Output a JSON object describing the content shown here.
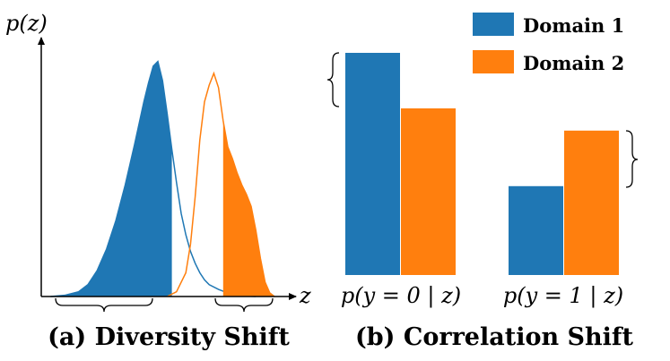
{
  "colors": {
    "domain1": "#1f77b4",
    "domain2": "#ff7f0e",
    "axis": "#000000"
  },
  "chart_data": [
    {
      "panel": "a",
      "type": "area",
      "title": "(a) Diversity Shift",
      "ylabel": "p(z)",
      "xlabel": "z",
      "xlim": [
        0,
        100
      ],
      "ylim": [
        0,
        100
      ],
      "series": [
        {
          "name": "Domain 1",
          "color": "#1f77b4",
          "x": [
            4,
            10,
            16,
            20,
            24,
            28,
            32,
            36,
            40,
            44,
            46,
            48,
            50,
            52,
            54,
            56,
            58,
            60,
            62,
            64,
            66,
            68,
            70,
            72,
            76,
            80,
            84,
            88,
            92
          ],
          "y": [
            0,
            0.5,
            2,
            5,
            11,
            20,
            32,
            47,
            64,
            82,
            90,
            97,
            99,
            91,
            77,
            62,
            48,
            35,
            26,
            19,
            14,
            10,
            7,
            5,
            3,
            1.5,
            0.6,
            0.2,
            0
          ],
          "filled_x_range": [
            4,
            56
          ]
        },
        {
          "name": "Domain 2",
          "color": "#ff7f0e",
          "x": [
            54,
            58,
            62,
            64,
            66,
            68,
            70,
            72,
            74,
            76,
            78,
            80,
            82,
            84,
            86,
            88,
            90,
            92,
            94,
            96,
            98,
            100
          ],
          "y": [
            0,
            2,
            10,
            22,
            42,
            66,
            82,
            89,
            94,
            88,
            74,
            63,
            58,
            52,
            47,
            43,
            38,
            28,
            16,
            6,
            1.5,
            0
          ],
          "filled_x_range": [
            78,
            100
          ]
        }
      ],
      "annotations": [
        "brace under filled Domain 1 region",
        "brace under filled Domain 2 region"
      ]
    },
    {
      "panel": "b",
      "type": "bar",
      "title": "(b) Correlation Shift",
      "categories": [
        "p(y = 0 | z)",
        "p(y = 1 | z)"
      ],
      "series": [
        {
          "name": "Domain 1",
          "color": "#1f77b4",
          "values": [
            1.0,
            0.4
          ]
        },
        {
          "name": "Domain 2",
          "color": "#ff7f0e",
          "values": [
            0.75,
            0.65
          ]
        }
      ],
      "ylim": [
        0,
        1.0
      ],
      "legend": [
        "Domain 1",
        "Domain 2"
      ],
      "legend_position": "top-right",
      "annotations": [
        "brace spanning gap between bars for p(y = 0 | z)",
        "brace spanning gap between bars for p(y = 1 | z)"
      ]
    }
  ]
}
